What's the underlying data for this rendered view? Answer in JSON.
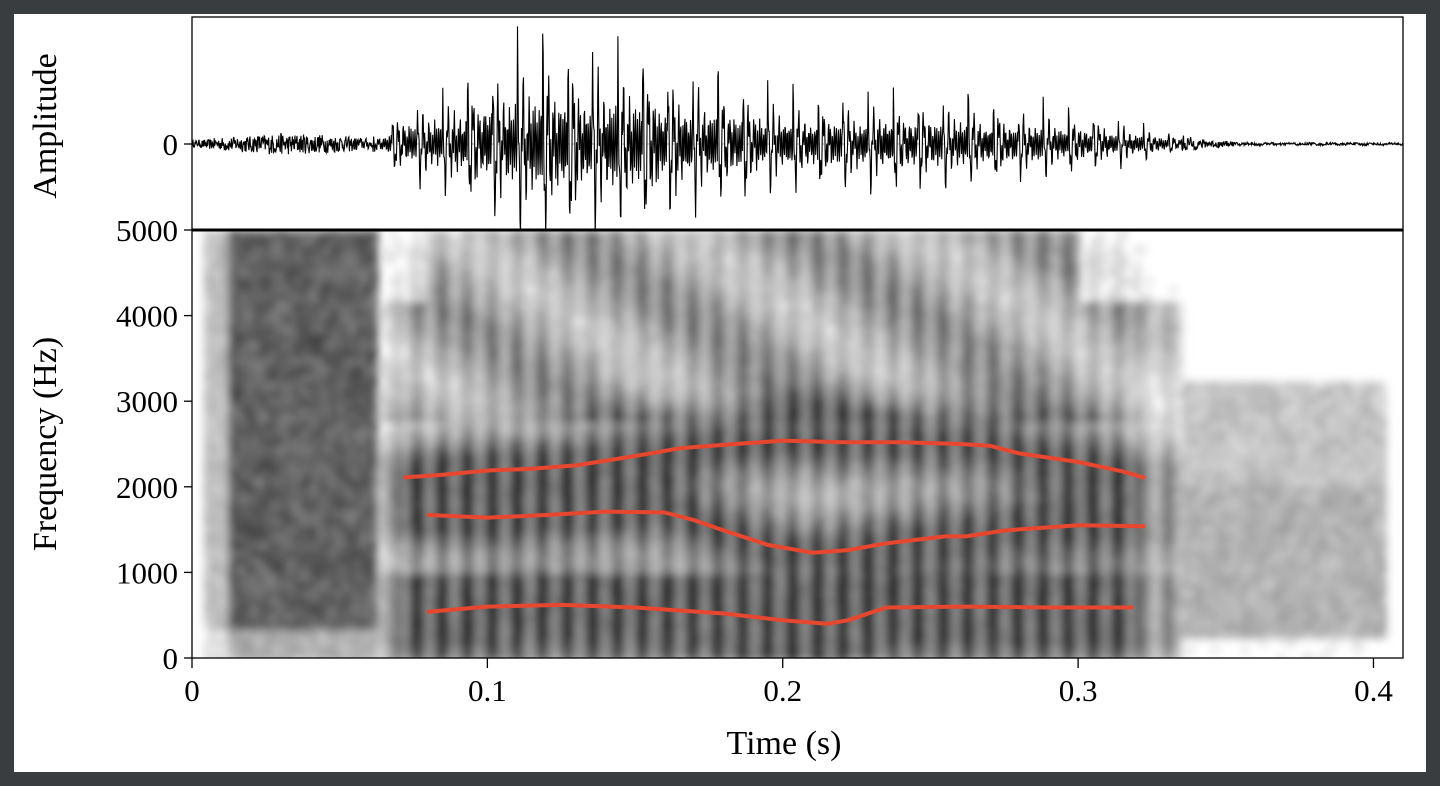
{
  "chart_data": [
    {
      "type": "line",
      "panel": "waveform",
      "ylabel": "Amplitude",
      "y_ticks": [
        "0"
      ],
      "x_axis_shared": true,
      "xlim": [
        0,
        0.41
      ],
      "series": [
        {
          "envelope_x": [
            0,
            0.01,
            0.03,
            0.05,
            0.06,
            0.066,
            0.07,
            0.085,
            0.1,
            0.11,
            0.12,
            0.13,
            0.15,
            0.17,
            0.19,
            0.205,
            0.22,
            0.235,
            0.25,
            0.27,
            0.29,
            0.31,
            0.32,
            0.33,
            0.34,
            0.35,
            0.36,
            0.41
          ],
          "envelope_y": [
            0.03,
            0.06,
            0.1,
            0.08,
            0.05,
            0.18,
            0.35,
            0.52,
            0.74,
            0.92,
            1.0,
            0.95,
            0.85,
            0.72,
            0.55,
            0.48,
            0.46,
            0.5,
            0.48,
            0.42,
            0.36,
            0.26,
            0.2,
            0.12,
            0.05,
            0.025,
            0.012,
            0.012
          ]
        }
      ]
    },
    {
      "type": "heatmap",
      "panel": "spectrogram",
      "xlabel": "Time (s)",
      "ylabel": "Frequency (Hz)",
      "xlim": [
        0,
        0.41
      ],
      "ylim": [
        0,
        5000
      ],
      "x_ticks": [
        "0",
        "0.1",
        "0.2",
        "0.3",
        "0.4"
      ],
      "y_ticks": [
        "0",
        "1000",
        "2000",
        "3000",
        "4000",
        "5000"
      ],
      "colormap": "grayscale",
      "overlay_color": "#e8472f",
      "series": [
        {
          "x": [
            0.072,
            0.085,
            0.1,
            0.115,
            0.13,
            0.15,
            0.165,
            0.18,
            0.2,
            0.22,
            0.24,
            0.26,
            0.27,
            0.28,
            0.3,
            0.315,
            0.322
          ],
          "y": [
            2110,
            2140,
            2190,
            2210,
            2250,
            2360,
            2450,
            2490,
            2540,
            2520,
            2520,
            2500,
            2480,
            2390,
            2290,
            2180,
            2110
          ]
        },
        {
          "x": [
            0.08,
            0.1,
            0.12,
            0.14,
            0.16,
            0.17,
            0.18,
            0.195,
            0.21,
            0.222,
            0.235,
            0.255,
            0.262,
            0.275,
            0.3,
            0.322
          ],
          "y": [
            1670,
            1640,
            1670,
            1710,
            1700,
            1610,
            1490,
            1320,
            1230,
            1260,
            1340,
            1420,
            1420,
            1490,
            1550,
            1540
          ]
        },
        {
          "x": [
            0.08,
            0.1,
            0.125,
            0.15,
            0.18,
            0.2,
            0.215,
            0.222,
            0.235,
            0.26,
            0.29,
            0.318
          ],
          "y": [
            540,
            600,
            620,
            590,
            520,
            440,
            400,
            440,
            590,
            600,
            590,
            590
          ]
        }
      ]
    }
  ]
}
